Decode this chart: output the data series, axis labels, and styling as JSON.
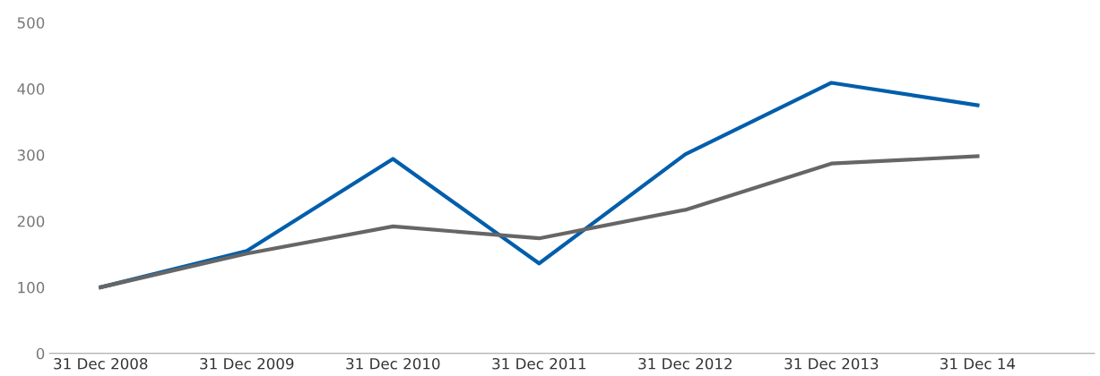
{
  "chart_data": {
    "type": "line",
    "categories": [
      "31 Dec 2008",
      "31 Dec 2009",
      "31 Dec 2010",
      "31 Dec 2011",
      "31 Dec 2012",
      "31 Dec 2013",
      "31 Dec 14"
    ],
    "series": [
      {
        "color": "#005eab",
        "values": [
          100,
          155,
          294,
          136,
          301,
          409,
          375
        ]
      },
      {
        "color": "#666666",
        "values": [
          100,
          151,
          192,
          174,
          217,
          287,
          298
        ]
      }
    ],
    "ylim": [
      0,
      500
    ],
    "yticks": [
      0,
      100,
      200,
      300,
      400,
      500
    ],
    "grid": false,
    "legend": false,
    "marker": "none",
    "line_style": "solid"
  }
}
